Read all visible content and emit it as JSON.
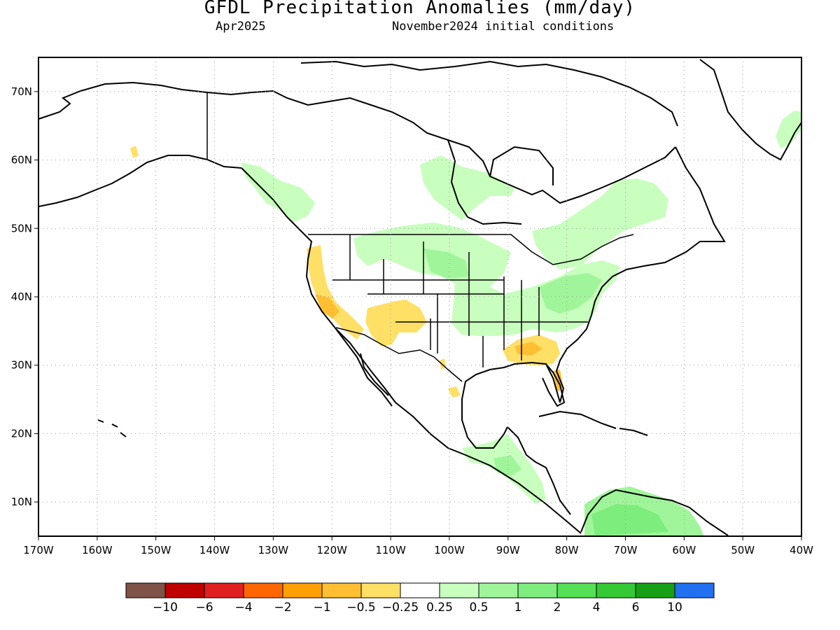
{
  "title": "GFDL Precipitation Anomalies (mm/day)",
  "subtitle_left": "Apr2025",
  "subtitle_right": "November2024 initial conditions",
  "map": {
    "lon_range": [
      -170,
      -40
    ],
    "lat_range": [
      5,
      75
    ],
    "lon_ticks": [
      {
        "value": -170,
        "label": "170W"
      },
      {
        "value": -160,
        "label": "160W"
      },
      {
        "value": -150,
        "label": "150W"
      },
      {
        "value": -140,
        "label": "140W"
      },
      {
        "value": -130,
        "label": "130W"
      },
      {
        "value": -120,
        "label": "120W"
      },
      {
        "value": -110,
        "label": "110W"
      },
      {
        "value": -100,
        "label": "100W"
      },
      {
        "value": -90,
        "label": "90W"
      },
      {
        "value": -80,
        "label": "80W"
      },
      {
        "value": -70,
        "label": "70W"
      },
      {
        "value": -60,
        "label": "60W"
      },
      {
        "value": -50,
        "label": "50W"
      },
      {
        "value": -40,
        "label": "40W"
      }
    ],
    "lat_ticks": [
      {
        "value": 10,
        "label": "10N"
      },
      {
        "value": 20,
        "label": "20N"
      },
      {
        "value": 30,
        "label": "30N"
      },
      {
        "value": 40,
        "label": "40N"
      },
      {
        "value": 50,
        "label": "50N"
      },
      {
        "value": 60,
        "label": "60N"
      },
      {
        "value": 70,
        "label": "70N"
      }
    ],
    "grid": true
  },
  "colorbar": {
    "colors": [
      "#7f5346",
      "#c00000",
      "#e02020",
      "#ff6600",
      "#ff9f00",
      "#ffbf33",
      "#ffe066",
      "#ffffff",
      "#c8ffbe",
      "#a0f59a",
      "#7ded7d",
      "#55e055",
      "#35c935",
      "#15a015",
      "#2070f0"
    ],
    "labels": [
      "−10",
      "−6",
      "−4",
      "−2",
      "−1",
      "−0.5",
      "−0.25",
      "0.25",
      "0.5",
      "1",
      "2",
      "4",
      "6",
      "10"
    ]
  },
  "anomaly_colors": {
    "dry_light": "#ffe066",
    "dry_medium": "#ffbf33",
    "wet_light": "#c8ffbe",
    "wet_medium": "#a0f59a",
    "wet_strong": "#7ded7d",
    "wet_stronger": "#55e055"
  }
}
